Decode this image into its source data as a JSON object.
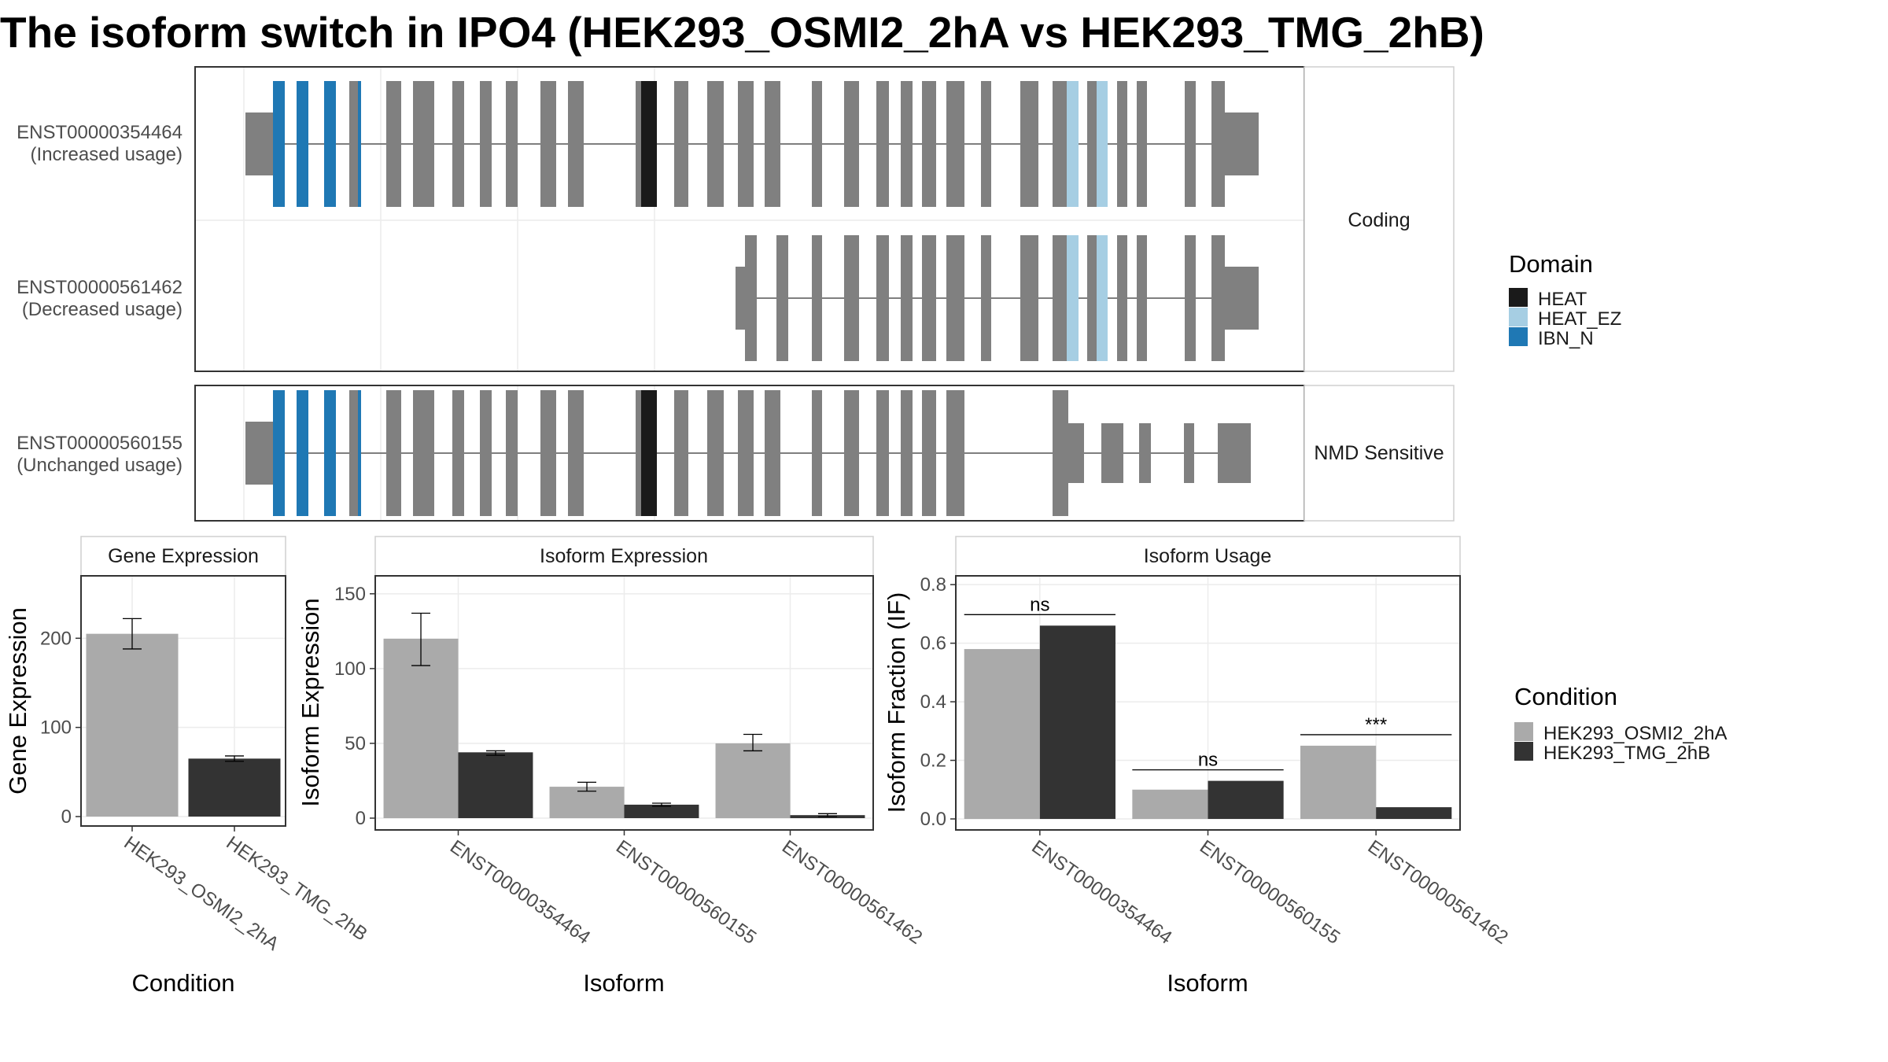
{
  "title": "The isoform switch in IPO4 (HEK293_OSMI2_2hA vs HEK293_TMG_2hB)",
  "colors": {
    "exon": "#808080",
    "heat": "#1a1a1a",
    "heat_ez": "#a6cee3",
    "ibn_n": "#1f78b4",
    "cond_a": "#aaaaaa",
    "cond_b": "#333333"
  },
  "structure": {
    "panel_coding_label": "Coding",
    "panel_nmd_label": "NMD Sensitive",
    "transcripts": [
      {
        "id": "ENST00000354464",
        "usage": "(Increased usage)",
        "category": "Coding"
      },
      {
        "id": "ENST00000561462",
        "usage": "(Decreased usage)",
        "category": "Coding"
      },
      {
        "id": "ENST00000560155",
        "usage": "(Unchanged usage)",
        "category": "NMD Sensitive"
      }
    ]
  },
  "legend_domain": {
    "title": "Domain",
    "items": [
      {
        "label": "HEAT",
        "color": "#1a1a1a"
      },
      {
        "label": "HEAT_EZ",
        "color": "#a6cee3"
      },
      {
        "label": "IBN_N",
        "color": "#1f78b4"
      }
    ]
  },
  "legend_condition": {
    "title": "Condition",
    "items": [
      {
        "label": "HEK293_OSMI2_2hA",
        "color": "#aaaaaa"
      },
      {
        "label": "HEK293_TMG_2hB",
        "color": "#333333"
      }
    ]
  },
  "chart_data": [
    {
      "type": "bar",
      "title": "Gene Expression",
      "xlabel": "Condition",
      "ylabel": "Gene Expression",
      "categories": [
        "HEK293_OSMI2_2hA",
        "HEK293_TMG_2hB"
      ],
      "values": [
        205,
        65
      ],
      "error_low": [
        188,
        62
      ],
      "error_high": [
        222,
        68
      ],
      "ylim": [
        0,
        270
      ],
      "yticks": [
        0,
        100,
        200
      ]
    },
    {
      "type": "bar",
      "title": "Isoform Expression",
      "xlabel": "Isoform",
      "ylabel": "Isoform Expression",
      "categories": [
        "ENST00000354464",
        "ENST00000560155",
        "ENST00000561462"
      ],
      "series": [
        {
          "name": "HEK293_OSMI2_2hA",
          "values": [
            120,
            21,
            50
          ],
          "error_low": [
            102,
            18,
            45
          ],
          "error_high": [
            137,
            24,
            56
          ]
        },
        {
          "name": "HEK293_TMG_2hB",
          "values": [
            44,
            9,
            2
          ],
          "error_low": [
            42,
            8,
            1
          ],
          "error_high": [
            45,
            10,
            3
          ]
        }
      ],
      "ylim": [
        0,
        162
      ],
      "yticks": [
        0,
        50,
        100,
        150
      ]
    },
    {
      "type": "bar",
      "title": "Isoform Usage",
      "xlabel": "Isoform",
      "ylabel": "Isoform Fraction (IF)",
      "categories": [
        "ENST00000354464",
        "ENST00000560155",
        "ENST00000561462"
      ],
      "series": [
        {
          "name": "HEK293_OSMI2_2hA",
          "values": [
            0.58,
            0.1,
            0.25
          ]
        },
        {
          "name": "HEK293_TMG_2hB",
          "values": [
            0.66,
            0.13,
            0.04
          ]
        }
      ],
      "significance": [
        "ns",
        "ns",
        "***"
      ],
      "ylim": [
        0,
        0.83
      ],
      "yticks": [
        "0.0",
        "0.2",
        "0.4",
        "0.6",
        "0.8"
      ]
    }
  ]
}
